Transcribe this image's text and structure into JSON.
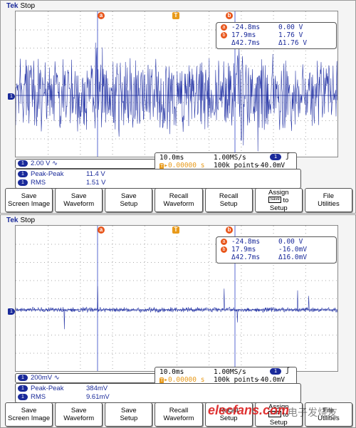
{
  "panels": [
    {
      "brand": "Tek",
      "state": "Stop",
      "cursor_a_label": "a",
      "cursor_b_label": "b",
      "trigger_label": "T",
      "ground_label": "1",
      "cursors": {
        "a_time": "-24.8ms",
        "a_value": "0.00 V",
        "b_time": "17.9ms",
        "b_value": "1.76 V",
        "delta_time": "Δ42.7ms",
        "delta_value": "Δ1.76 V"
      },
      "channel": {
        "num": "1",
        "scale": "2.00 V",
        "coupling": "∿"
      },
      "horizontal": {
        "time_div": "10.0ms",
        "sample_rate": "1.00MS/s",
        "trig_pos": "▸0.00000 s",
        "record": "100k points",
        "trig_level": "-40.0mV",
        "trig_ch": "1",
        "edge": "ʃ"
      },
      "measurements": [
        {
          "label": "Peak-Peak",
          "value": "11.4 V"
        },
        {
          "label": "RMS",
          "value": "1.51 V"
        }
      ],
      "waveform": {
        "noise_amplitude": 0.55,
        "spike_amplitude": 0.85,
        "bursts_at_fraction": [
          0.26,
          0.7
        ]
      }
    },
    {
      "brand": "Tek",
      "state": "Stop",
      "cursor_a_label": "a",
      "cursor_b_label": "b",
      "trigger_label": "T",
      "ground_label": "1",
      "cursors": {
        "a_time": "-24.8ms",
        "a_value": "0.00 V",
        "b_time": "17.9ms",
        "b_value": "-16.0mV",
        "delta_time": "Δ42.7ms",
        "delta_value": "Δ16.0mV"
      },
      "channel": {
        "num": "1",
        "scale": "200mV",
        "coupling": "∿"
      },
      "horizontal": {
        "time_div": "10.0ms",
        "sample_rate": "1.00MS/s",
        "trig_pos": "▸0.00000 s",
        "record": "100k points",
        "trig_level": "-40.0mV",
        "trig_ch": "1",
        "edge": "ʃ"
      },
      "measurements": [
        {
          "label": "Peak-Peak",
          "value": "384mV"
        },
        {
          "label": "RMS",
          "value": "9.61mV"
        }
      ],
      "waveform": {
        "noise_amplitude": 0.04,
        "spike_amplitude": 0.35,
        "bursts_at_fraction": []
      }
    }
  ],
  "buttons": [
    {
      "line1": "Save",
      "line2": "Screen Image"
    },
    {
      "line1": "Save",
      "line2": "Waveform"
    },
    {
      "line1": "Save",
      "line2": "Setup"
    },
    {
      "line1": "Recall",
      "line2": "Waveform"
    },
    {
      "line1": "Recall",
      "line2": "Setup"
    },
    {
      "line1": "Assign",
      "line2_pre": "",
      "mini": "Save",
      "line2_post": "to",
      "line3": "Setup"
    },
    {
      "line1": "File",
      "line2": "Utilities"
    }
  ],
  "watermark": {
    "text": "elecfans.com",
    "cn": "电子发烧友"
  },
  "colors": {
    "trace": "#2b3aa8",
    "cursor": "#e8551a",
    "trigger": "#e89a1a",
    "text_blue": "#1a2a9a"
  }
}
